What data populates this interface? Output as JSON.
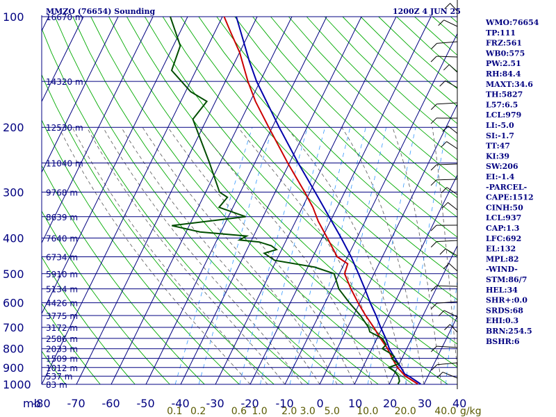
{
  "title": {
    "station": "MMZO (76654) Sounding",
    "time": "1200Z  4 JUN 25"
  },
  "colors": {
    "isobar": "#000080",
    "isotherm": "#000080",
    "dry_adiabat": "#00aa00",
    "moist_adiabat": "#555555",
    "mixing_ratio": "#3399ff",
    "temperature": "#cc0000",
    "dewpoint": "#004d00",
    "parcel": "#0000aa",
    "labels": "#000080",
    "mixing_ratio_labels": "#5a5a00"
  },
  "chart_data": {
    "type": "line",
    "subtype": "skew-t log-p",
    "ylabel": "mb",
    "xlabel": "°C",
    "pressure_levels": [
      100,
      200,
      300,
      400,
      500,
      600,
      700,
      800,
      900,
      1000
    ],
    "pressure_ticks": [
      "100",
      "200",
      "300",
      "400",
      "500",
      "600",
      "700",
      "800",
      "900",
      "1000"
    ],
    "temperature_ticks": [
      "-80",
      "-70",
      "-60",
      "-50",
      "-40",
      "-30",
      "-20",
      "-10",
      "0",
      "10",
      "20",
      "30",
      "40"
    ],
    "x_label_mb": "mb",
    "ylim": [
      1000,
      100
    ],
    "xlim": [
      -80,
      40
    ],
    "height_labels": [
      {
        "p": 100,
        "text": "16670 m"
      },
      {
        "p": 150,
        "text": "14320 m"
      },
      {
        "p": 200,
        "text": "12530 m"
      },
      {
        "p": 250,
        "text": "11040 m"
      },
      {
        "p": 300,
        "text": "9768 m"
      },
      {
        "p": 350,
        "text": "8639 m"
      },
      {
        "p": 400,
        "text": "7640 m"
      },
      {
        "p": 450,
        "text": "6734 m"
      },
      {
        "p": 500,
        "text": "5910 m"
      },
      {
        "p": 550,
        "text": "5134 m"
      },
      {
        "p": 600,
        "text": "4426 m"
      },
      {
        "p": 650,
        "text": "3775 m"
      },
      {
        "p": 700,
        "text": "3172 m"
      },
      {
        "p": 750,
        "text": "2586 m"
      },
      {
        "p": 800,
        "text": "2033 m"
      },
      {
        "p": 850,
        "text": "1509 m"
      },
      {
        "p": 900,
        "text": "1012 m"
      },
      {
        "p": 950,
        "text": "537 m"
      },
      {
        "p": 1000,
        "text": "83 m"
      }
    ],
    "mixing_ratio_labels": [
      "0.1",
      "0.2",
      "0.6",
      "1.0",
      "2.0",
      "3.0",
      "5.0",
      "10.0",
      "20.0",
      "40.0"
    ],
    "mixing_ratio_unit": "g/kg",
    "mixing_ratio_values": [
      0.1,
      0.2,
      0.6,
      1.0,
      2.0,
      3.0,
      5.0,
      10.0,
      20.0,
      40.0
    ],
    "series": [
      {
        "name": "Temperature",
        "points": [
          [
            998,
            28.2
          ],
          [
            950,
            23.5
          ],
          [
            900,
            20.0
          ],
          [
            850,
            17.2
          ],
          [
            800,
            14.5
          ],
          [
            750,
            11.0
          ],
          [
            700,
            7.5
          ],
          [
            650,
            3.5
          ],
          [
            600,
            -0.5
          ],
          [
            550,
            -4.5
          ],
          [
            500,
            -8.5
          ],
          [
            470,
            -9.0
          ],
          [
            450,
            -13.0
          ],
          [
            400,
            -18.5
          ],
          [
            360,
            -23.5
          ],
          [
            330,
            -27.0
          ],
          [
            300,
            -31.5
          ],
          [
            250,
            -40.5
          ],
          [
            200,
            -51.0
          ],
          [
            170,
            -58.5
          ],
          [
            150,
            -63.5
          ],
          [
            125,
            -70.0
          ],
          [
            110,
            -75.5
          ],
          [
            100,
            -79.5
          ]
        ]
      },
      {
        "name": "Dewpoint",
        "points": [
          [
            998,
            22.5
          ],
          [
            980,
            22.5
          ],
          [
            950,
            21.5
          ],
          [
            920,
            19.5
          ],
          [
            900,
            17.5
          ],
          [
            880,
            19.8
          ],
          [
            850,
            17.0
          ],
          [
            840,
            17.5
          ],
          [
            820,
            15.5
          ],
          [
            800,
            13.0
          ],
          [
            780,
            13.5
          ],
          [
            750,
            11.5
          ],
          [
            720,
            7.0
          ],
          [
            700,
            6.0
          ],
          [
            650,
            2.0
          ],
          [
            600,
            -3.0
          ],
          [
            550,
            -8.0
          ],
          [
            500,
            -11.5
          ],
          [
            480,
            -18.0
          ],
          [
            460,
            -30.5
          ],
          [
            440,
            -34.5
          ],
          [
            430,
            -31.5
          ],
          [
            420,
            -33.5
          ],
          [
            410,
            -37.5
          ],
          [
            405,
            -43.5
          ],
          [
            395,
            -42.0
          ],
          [
            385,
            -56.0
          ],
          [
            370,
            -65.0
          ],
          [
            350,
            -45.0
          ],
          [
            330,
            -54.0
          ],
          [
            310,
            -53.0
          ],
          [
            300,
            -56.0
          ],
          [
            250,
            -63.0
          ],
          [
            210,
            -70.0
          ],
          [
            190,
            -74.0
          ],
          [
            170,
            -72.5
          ],
          [
            160,
            -78.5
          ],
          [
            140,
            -87.0
          ],
          [
            120,
            -88.0
          ],
          [
            100,
            -95.0
          ]
        ]
      },
      {
        "name": "Parcel",
        "points": [
          [
            998,
            29.0
          ],
          [
            950,
            24.5
          ],
          [
            937,
            23.0
          ],
          [
            900,
            21.0
          ],
          [
            850,
            18.0
          ],
          [
            800,
            15.0
          ],
          [
            750,
            12.5
          ],
          [
            700,
            9.5
          ],
          [
            650,
            6.5
          ],
          [
            600,
            3.0
          ],
          [
            550,
            -0.5
          ],
          [
            500,
            -4.5
          ],
          [
            450,
            -9.0
          ],
          [
            400,
            -14.5
          ],
          [
            350,
            -21.0
          ],
          [
            300,
            -28.5
          ],
          [
            250,
            -37.5
          ],
          [
            200,
            -48.0
          ],
          [
            150,
            -61.0
          ],
          [
            132,
            -66.0
          ],
          [
            100,
            -76.0
          ]
        ]
      }
    ]
  },
  "indices": [
    "WMO:76654",
    "TP:111",
    "FRZ:561",
    "WB0:575",
    "PW:2.51",
    "RH:84.4",
    "MAXT:34.6",
    "TH:5827",
    "L57:6.5",
    "LCL:979",
    "LI:-5.0",
    "SI:-1.7",
    "TT:47",
    "KI:39",
    "SW:206",
    "EI:-1.4",
    "-PARCEL-",
    "CAPE:1512",
    "CINH:50",
    "LCL:937",
    "CAP:1.3",
    "LFC:692",
    "EL:132",
    "MPL:82",
    "-WIND-",
    "STM:86/7",
    "HEL:34",
    "SHR+:0.0",
    "SRDS:68",
    "EHI:0.3",
    "BRN:254.5",
    "BSHR:6"
  ]
}
